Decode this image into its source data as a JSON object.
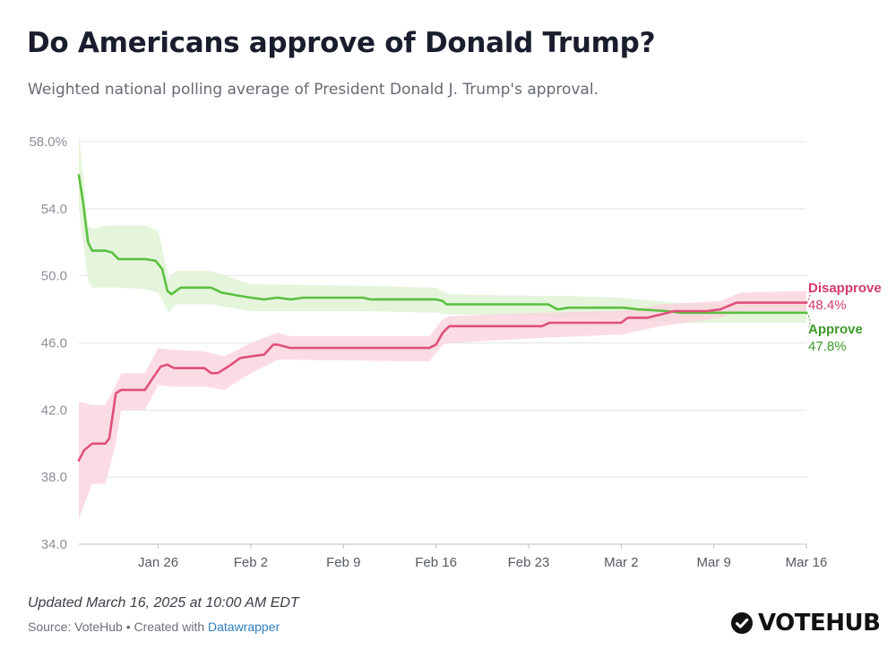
{
  "title": "Do Americans approve of Donald Trump?",
  "subtitle": "Weighted national polling average of President Donald J. Trump's approval.",
  "footer": {
    "updated": "Updated March 16, 2025 at 10:00 AM EDT",
    "source_prefix": "Source: VoteHub • Created with ",
    "source_link": "Datawrapper",
    "brand": "VOTEHUB"
  },
  "colors": {
    "approve": "#5bbf3f",
    "approve_label": "#3f9a2a",
    "approve_band": "#dff3d6",
    "disapprove": "#e0507a",
    "disapprove_label": "#d33a6b",
    "disapprove_band": "#fad3de",
    "grid": "#e3e3e3"
  },
  "chart_data": {
    "type": "line",
    "title": "Do Americans approve of Donald Trump?",
    "ylim": [
      34,
      58
    ],
    "yticks": [
      58,
      54,
      50,
      46,
      42,
      38,
      34
    ],
    "ytick_labels": [
      "58.0%",
      "54.0",
      "50.0",
      "46.0",
      "42.0",
      "38.0",
      "34.0"
    ],
    "xlim": [
      0,
      55
    ],
    "xticks": [
      {
        "x": 6,
        "label": "Jan 26"
      },
      {
        "x": 13,
        "label": "Feb 2"
      },
      {
        "x": 20,
        "label": "Feb 9"
      },
      {
        "x": 27,
        "label": "Feb 16"
      },
      {
        "x": 34,
        "label": "Feb 23"
      },
      {
        "x": 41,
        "label": "Mar 2"
      },
      {
        "x": 48,
        "label": "Mar 9"
      },
      {
        "x": 55,
        "label": "Mar 16"
      }
    ],
    "series": [
      {
        "name": "Approve",
        "final_label": "47.8%",
        "points": [
          [
            0,
            56.0
          ],
          [
            0.3,
            54.5
          ],
          [
            0.7,
            52.0
          ],
          [
            1.0,
            51.5
          ],
          [
            2.0,
            51.5
          ],
          [
            2.5,
            51.4
          ],
          [
            3.0,
            51.0
          ],
          [
            5.0,
            51.0
          ],
          [
            5.8,
            50.9
          ],
          [
            6.3,
            50.4
          ],
          [
            6.7,
            49.1
          ],
          [
            7.0,
            48.9
          ],
          [
            7.7,
            49.3
          ],
          [
            10.0,
            49.3
          ],
          [
            10.8,
            49.0
          ],
          [
            12.2,
            48.8
          ],
          [
            13.0,
            48.7
          ],
          [
            14.0,
            48.6
          ],
          [
            15.0,
            48.7
          ],
          [
            16.0,
            48.6
          ],
          [
            17.0,
            48.7
          ],
          [
            21.5,
            48.7
          ],
          [
            22.0,
            48.6
          ],
          [
            27.0,
            48.6
          ],
          [
            27.5,
            48.5
          ],
          [
            27.8,
            48.3
          ],
          [
            35.5,
            48.3
          ],
          [
            36.2,
            48.0
          ],
          [
            37.0,
            48.1
          ],
          [
            41.2,
            48.1
          ],
          [
            42.3,
            48.0
          ],
          [
            44.5,
            47.9
          ],
          [
            45.5,
            47.8
          ],
          [
            47.5,
            47.8
          ],
          [
            48.5,
            47.8
          ],
          [
            55.0,
            47.8
          ]
        ],
        "band": [
          [
            0,
            58.5,
            54.0
          ],
          [
            0.7,
            53.0,
            49.7
          ],
          [
            1.0,
            52.8,
            49.3
          ],
          [
            2.0,
            53.0,
            49.3
          ],
          [
            3.0,
            53.0,
            49.3
          ],
          [
            5.0,
            53.0,
            49.2
          ],
          [
            6.0,
            52.7,
            49.0
          ],
          [
            6.8,
            49.8,
            47.8
          ],
          [
            7.3,
            50.3,
            48.3
          ],
          [
            10.0,
            50.3,
            48.3
          ],
          [
            13.0,
            49.5,
            47.9
          ],
          [
            21.5,
            49.4,
            47.9
          ],
          [
            27.0,
            49.3,
            47.8
          ],
          [
            28.0,
            48.9,
            47.7
          ],
          [
            35.5,
            48.8,
            47.6
          ],
          [
            37.0,
            48.8,
            47.5
          ],
          [
            41.0,
            48.7,
            47.4
          ],
          [
            45.0,
            48.4,
            47.2
          ],
          [
            48.5,
            48.3,
            47.2
          ],
          [
            55.0,
            48.3,
            47.2
          ]
        ]
      },
      {
        "name": "Disapprove",
        "final_label": "48.4%",
        "points": [
          [
            0,
            39.0
          ],
          [
            0.4,
            39.6
          ],
          [
            1.0,
            40.0
          ],
          [
            2.0,
            40.0
          ],
          [
            2.3,
            40.3
          ],
          [
            2.8,
            43.0
          ],
          [
            3.2,
            43.2
          ],
          [
            5.0,
            43.2
          ],
          [
            5.5,
            43.8
          ],
          [
            6.2,
            44.6
          ],
          [
            6.7,
            44.7
          ],
          [
            7.2,
            44.5
          ],
          [
            9.5,
            44.5
          ],
          [
            10.0,
            44.2
          ],
          [
            10.5,
            44.2
          ],
          [
            11.5,
            44.7
          ],
          [
            12.2,
            45.1
          ],
          [
            13.0,
            45.2
          ],
          [
            14.0,
            45.3
          ],
          [
            14.7,
            45.9
          ],
          [
            15.0,
            45.9
          ],
          [
            15.5,
            45.8
          ],
          [
            16.0,
            45.7
          ],
          [
            26.5,
            45.7
          ],
          [
            27.0,
            45.9
          ],
          [
            27.5,
            46.6
          ],
          [
            28.0,
            47.0
          ],
          [
            31.0,
            47.0
          ],
          [
            33.0,
            47.0
          ],
          [
            35.0,
            47.0
          ],
          [
            35.6,
            47.2
          ],
          [
            36.0,
            47.2
          ],
          [
            39.0,
            47.2
          ],
          [
            41.0,
            47.2
          ],
          [
            41.5,
            47.5
          ],
          [
            43.0,
            47.5
          ],
          [
            44.0,
            47.7
          ],
          [
            45.0,
            47.9
          ],
          [
            47.5,
            47.9
          ],
          [
            48.5,
            48.0
          ],
          [
            49.7,
            48.4
          ],
          [
            55.0,
            48.4
          ]
        ],
        "band": [
          [
            0,
            42.5,
            35.5
          ],
          [
            1.0,
            42.3,
            37.6
          ],
          [
            2.0,
            42.3,
            37.6
          ],
          [
            2.8,
            43.5,
            40.0
          ],
          [
            3.2,
            44.2,
            42.0
          ],
          [
            5.0,
            44.2,
            42.0
          ],
          [
            6.0,
            45.7,
            43.5
          ],
          [
            7.0,
            45.6,
            43.4
          ],
          [
            9.5,
            45.5,
            43.4
          ],
          [
            11.0,
            45.2,
            43.2
          ],
          [
            13.0,
            46.0,
            44.2
          ],
          [
            15.0,
            46.6,
            45.0
          ],
          [
            16.0,
            46.4,
            45.0
          ],
          [
            26.5,
            46.4,
            44.9
          ],
          [
            27.5,
            47.4,
            45.9
          ],
          [
            28.0,
            47.6,
            46.0
          ],
          [
            35.0,
            47.8,
            46.3
          ],
          [
            41.0,
            47.9,
            46.5
          ],
          [
            44.0,
            48.3,
            47.0
          ],
          [
            48.5,
            48.5,
            47.5
          ],
          [
            50.0,
            49.0,
            47.9
          ],
          [
            55.0,
            49.1,
            47.9
          ]
        ]
      }
    ],
    "grid": true,
    "legend": "inline-end-labels"
  }
}
